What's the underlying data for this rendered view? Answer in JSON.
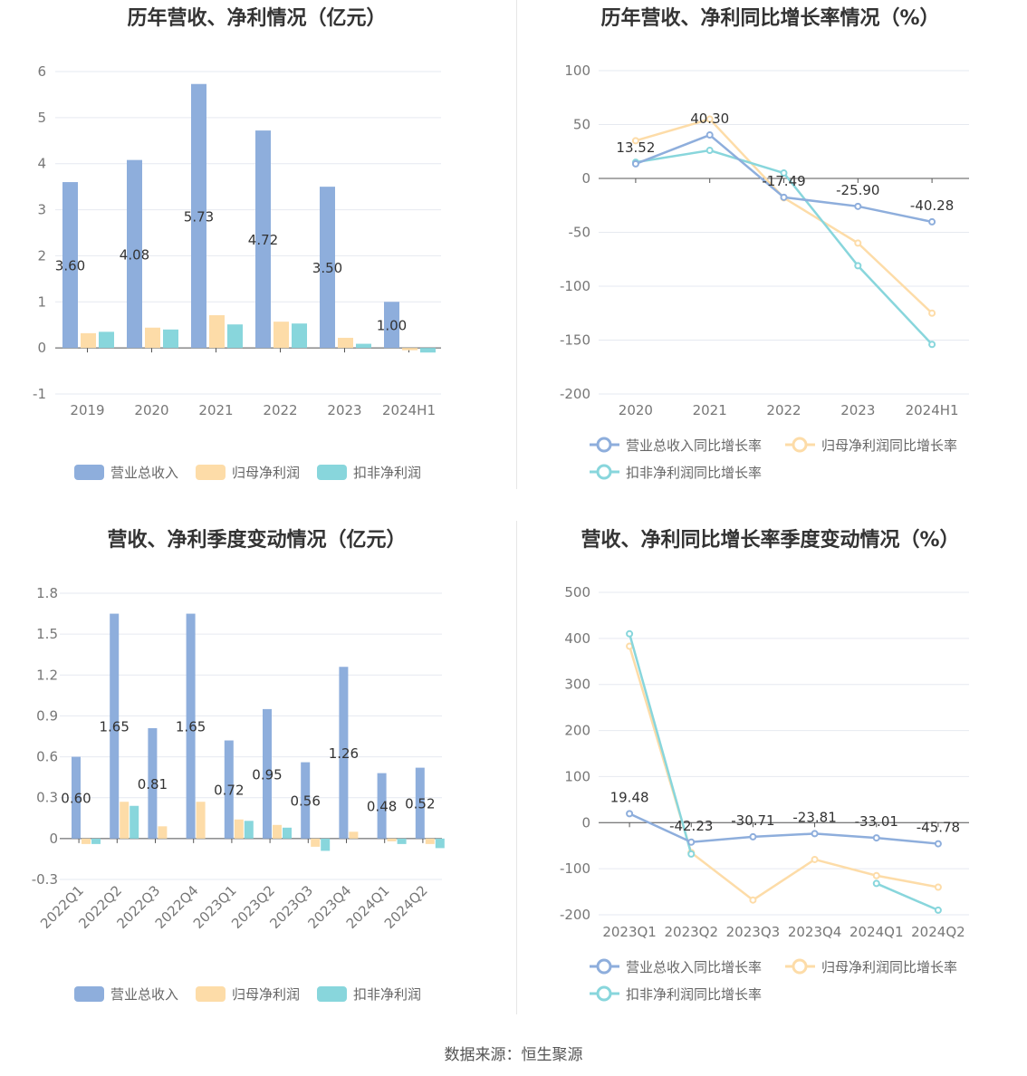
{
  "source": "数据来源：恒生聚源",
  "chart_data": [
    {
      "type": "bar",
      "title": "历年营收、净利情况（亿元）",
      "categories": [
        "2019",
        "2020",
        "2021",
        "2022",
        "2023",
        "2024H1"
      ],
      "ylim": [
        -1,
        6
      ],
      "yticks": [
        -1,
        0,
        1,
        2,
        3,
        4,
        5,
        6
      ],
      "series": [
        {
          "name": "营业总收入",
          "color": "#8eaedc",
          "values": [
            3.6,
            4.08,
            5.73,
            4.72,
            3.5,
            1.0
          ],
          "labels": [
            "3.60",
            "4.08",
            "5.73",
            "4.72",
            "3.50",
            "1.00"
          ]
        },
        {
          "name": "归母净利润",
          "color": "#fddca8",
          "values": [
            0.32,
            0.44,
            0.71,
            0.57,
            0.22,
            -0.05
          ]
        },
        {
          "name": "扣非净利润",
          "color": "#88d6dc",
          "values": [
            0.35,
            0.4,
            0.51,
            0.53,
            0.09,
            -0.1
          ]
        }
      ],
      "legend_position": "bottom"
    },
    {
      "type": "line",
      "title": "历年营收、净利同比增长率情况（%）",
      "categories": [
        "2020",
        "2021",
        "2022",
        "2023",
        "2024H1"
      ],
      "ylim": [
        -200,
        100
      ],
      "yticks": [
        -200,
        -150,
        -100,
        -50,
        0,
        50,
        100
      ],
      "series": [
        {
          "name": "营业总收入同比增长率",
          "color": "#8eaedc",
          "values": [
            13.52,
            40.3,
            -17.49,
            -25.9,
            -40.28
          ],
          "labels": [
            "13.52",
            "40.30",
            "-17.49",
            "-25.90",
            "-40.28"
          ]
        },
        {
          "name": "归母净利润同比增长率",
          "color": "#fddca8",
          "values": [
            35,
            55,
            -18,
            -60,
            -125
          ]
        },
        {
          "name": "扣非净利润同比增长率",
          "color": "#88d6dc",
          "values": [
            15,
            26,
            5,
            -81,
            -154
          ]
        }
      ],
      "legend_position": "bottom"
    },
    {
      "type": "bar",
      "title": "营收、净利季度变动情况（亿元）",
      "categories": [
        "2022Q1",
        "2022Q2",
        "2022Q3",
        "2022Q4",
        "2023Q1",
        "2023Q2",
        "2023Q3",
        "2023Q4",
        "2024Q1",
        "2024Q2"
      ],
      "ylim": [
        -0.3,
        1.8
      ],
      "yticks": [
        -0.3,
        0,
        0.3,
        0.6,
        0.9,
        1.2,
        1.5,
        1.8
      ],
      "ytick_labels": [
        "-0.3",
        "0",
        "0.3",
        "0.6",
        "0.9",
        "1.2",
        "1.5",
        "1.8"
      ],
      "series": [
        {
          "name": "营业总收入",
          "color": "#8eaedc",
          "values": [
            0.6,
            1.65,
            0.81,
            1.65,
            0.72,
            0.95,
            0.56,
            1.26,
            0.48,
            0.52
          ],
          "labels": [
            "0.60",
            "1.65",
            "0.81",
            "1.65",
            "0.72",
            "0.95",
            "0.56",
            "1.26",
            "0.48",
            "0.52"
          ]
        },
        {
          "name": "归母净利润",
          "color": "#fddca8",
          "values": [
            -0.04,
            0.27,
            0.09,
            0.27,
            0.14,
            0.1,
            -0.06,
            0.05,
            -0.02,
            -0.04
          ]
        },
        {
          "name": "扣非净利润",
          "color": "#88d6dc",
          "values": [
            -0.04,
            0.24,
            0.0,
            0.0,
            0.13,
            0.08,
            -0.09,
            0.0,
            -0.04,
            -0.07
          ]
        }
      ],
      "legend_position": "bottom"
    },
    {
      "type": "line",
      "title": "营收、净利同比增长率季度变动情况（%）",
      "categories": [
        "2023Q1",
        "2023Q2",
        "2023Q3",
        "2023Q4",
        "2024Q1",
        "2024Q2"
      ],
      "ylim": [
        -200,
        500
      ],
      "yticks": [
        -200,
        -100,
        0,
        100,
        200,
        300,
        400,
        500
      ],
      "series": [
        {
          "name": "营业总收入同比增长率",
          "color": "#8eaedc",
          "values": [
            19.48,
            -42.23,
            -30.71,
            -23.81,
            -33.01,
            -45.78
          ],
          "labels": [
            "19.48",
            "-42.23",
            "-30.71",
            "-23.81",
            "-33.01",
            "-45.78"
          ]
        },
        {
          "name": "归母净利润同比增长率",
          "color": "#fddca8",
          "values": [
            383,
            -65,
            -168,
            -80,
            -115,
            -140
          ]
        },
        {
          "name": "扣非净利润同比增长率",
          "color": "#88d6dc",
          "values": [
            410,
            -68,
            null,
            null,
            -132,
            -190
          ]
        }
      ],
      "legend_position": "bottom"
    }
  ]
}
